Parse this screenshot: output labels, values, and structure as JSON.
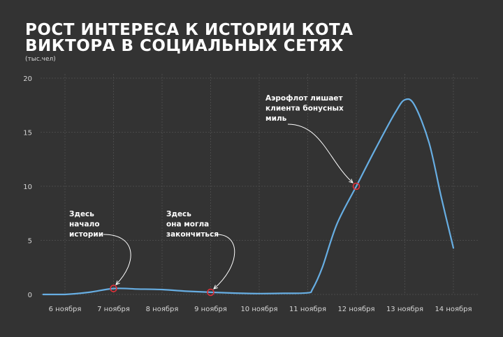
{
  "title_lines": [
    "Рост интереса к истории кота",
    "Виктора в социальных сетях"
  ],
  "unit_label": "(тыс.чел)",
  "colors": {
    "background": "#333333",
    "line": "#67aee3",
    "marker": "#e0303a",
    "grid": "#4a4a4a",
    "text": "#ffffff"
  },
  "chart_data": {
    "type": "line",
    "categories": [
      "6 ноября",
      "7 ноября",
      "8 ноября",
      "9 ноября",
      "10 ноября",
      "11 ноября",
      "12 ноября",
      "13 ноября",
      "14 ноября"
    ],
    "yticks": [
      0,
      5,
      10,
      15,
      20
    ],
    "ylim": [
      0,
      20
    ],
    "grid": true,
    "series": [
      {
        "x": [
          5.55,
          6.0,
          6.5,
          7.0,
          7.5,
          8.0,
          8.5,
          9.0,
          9.5,
          10.0,
          10.5,
          11.0,
          11.1,
          11.3,
          11.6,
          12.0,
          12.4,
          12.8,
          13.0,
          13.2,
          13.5,
          13.75,
          14.0
        ],
        "y": [
          0.0,
          0.0,
          0.2,
          0.55,
          0.5,
          0.45,
          0.3,
          0.2,
          0.12,
          0.08,
          0.1,
          0.15,
          0.5,
          2.5,
          6.5,
          10.0,
          13.5,
          16.8,
          18.0,
          17.5,
          14.0,
          9.0,
          4.3
        ]
      }
    ],
    "markers": [
      {
        "x": 7.0,
        "y": 0.55
      },
      {
        "x": 9.0,
        "y": 0.2
      },
      {
        "x": 12.0,
        "y": 10.0
      }
    ],
    "annotations": [
      {
        "lines": [
          "Здесь",
          "начало",
          "истории"
        ],
        "target": 0
      },
      {
        "lines": [
          "Здесь",
          "она могла",
          "закончиться"
        ],
        "target": 1
      },
      {
        "lines": [
          "Аэрофлот лишает",
          "клиента бонусных",
          "миль"
        ],
        "target": 2
      }
    ]
  }
}
